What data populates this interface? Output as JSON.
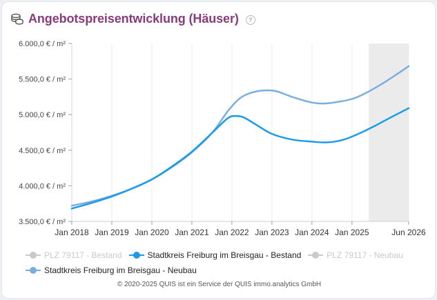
{
  "header": {
    "title": "Angebotspreisentwicklung (Häuser)",
    "help": "?"
  },
  "chart_data": {
    "type": "line",
    "title": "Angebotspreisentwicklung (Häuser)",
    "ylim": [
      3500,
      6000
    ],
    "y_ticks": [
      {
        "value": 3500,
        "label": "3.500,0 € / m²"
      },
      {
        "value": 4000,
        "label": "4.000,0 € / m²"
      },
      {
        "value": 4500,
        "label": "4.500,0 € / m²"
      },
      {
        "value": 5000,
        "label": "5.000,0 € / m²"
      },
      {
        "value": 5500,
        "label": "5.500,0 € / m²"
      },
      {
        "value": 6000,
        "label": "6.000,0 € / m²"
      }
    ],
    "xlim": [
      2018.0,
      2026.4167
    ],
    "x_ticks": [
      {
        "value": 2018.0,
        "label": "Jan 2018"
      },
      {
        "value": 2019.0,
        "label": "Jan 2019"
      },
      {
        "value": 2020.0,
        "label": "Jan 2020"
      },
      {
        "value": 2021.0,
        "label": "Jan 2021"
      },
      {
        "value": 2022.0,
        "label": "Jan 2022"
      },
      {
        "value": 2023.0,
        "label": "Jan 2023"
      },
      {
        "value": 2024.0,
        "label": "Jan 2024"
      },
      {
        "value": 2025.0,
        "label": "Jan 2025"
      },
      {
        "value": 2026.4167,
        "label": "Jun 2026"
      }
    ],
    "forecast_band": [
      2025.42,
      2026.4167
    ],
    "grid": "vertical",
    "series": [
      {
        "name": "PLZ 79117 - Bestand",
        "color": "#c9c9c9",
        "active": false,
        "x": [],
        "values": []
      },
      {
        "name": "Stadtkreis Freiburg im Breisgau - Bestand",
        "color": "#1a9be8",
        "active": true,
        "x": [
          2018.0,
          2018.5,
          2019.0,
          2019.5,
          2020.0,
          2020.5,
          2021.0,
          2021.5,
          2021.9,
          2022.1,
          2022.3,
          2022.6,
          2023.0,
          2023.5,
          2024.0,
          2024.4,
          2024.8,
          2025.2,
          2025.6,
          2026.0,
          2026.4167
        ],
        "values": [
          3680,
          3760,
          3850,
          3960,
          4090,
          4270,
          4480,
          4740,
          4950,
          4980,
          4960,
          4860,
          4730,
          4650,
          4620,
          4610,
          4650,
          4740,
          4850,
          4970,
          5090
        ]
      },
      {
        "name": "PLZ 79117 - Neubau",
        "color": "#c9c9c9",
        "active": false,
        "x": [],
        "values": []
      },
      {
        "name": "Stadtkreis Freiburg im Breisgau - Neubau",
        "color": "#7aaedf",
        "active": true,
        "x": [
          2018.0,
          2018.5,
          2019.0,
          2019.5,
          2020.0,
          2020.5,
          2021.0,
          2021.5,
          2021.9,
          2022.2,
          2022.5,
          2022.8,
          2023.1,
          2023.5,
          2024.0,
          2024.4,
          2025.0,
          2025.4,
          2025.8,
          2026.1,
          2026.4167
        ],
        "values": [
          3720,
          3780,
          3860,
          3960,
          4090,
          4260,
          4470,
          4740,
          5050,
          5230,
          5310,
          5340,
          5330,
          5250,
          5170,
          5160,
          5220,
          5320,
          5450,
          5560,
          5680
        ]
      }
    ]
  },
  "footer": {
    "text": "© 2020-2025 QUIS ist ein Service der QUIS immo.analytics GmbH"
  }
}
